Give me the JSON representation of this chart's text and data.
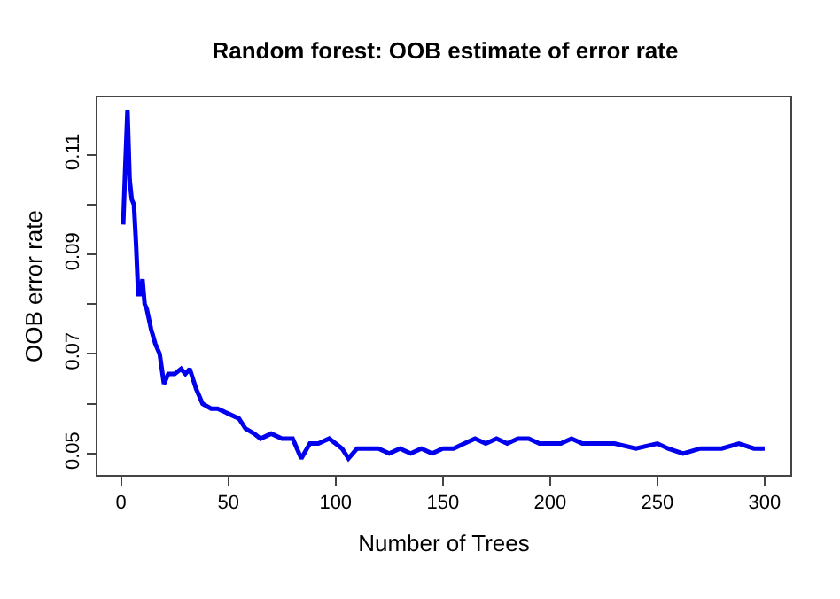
{
  "chart_data": {
    "type": "line",
    "title": "Random forest: OOB estimate of error rate",
    "xlabel": "Number of Trees",
    "ylabel": "OOB error rate",
    "x": [
      1,
      2,
      3,
      4,
      5,
      6,
      7,
      8,
      9,
      10,
      11,
      12,
      14,
      16,
      18,
      20,
      22,
      25,
      28,
      30,
      32,
      35,
      38,
      42,
      45,
      50,
      55,
      58,
      62,
      65,
      70,
      75,
      80,
      84,
      88,
      92,
      97,
      100,
      103,
      106,
      110,
      115,
      120,
      125,
      130,
      135,
      140,
      145,
      150,
      155,
      160,
      165,
      170,
      175,
      180,
      185,
      190,
      195,
      200,
      205,
      210,
      215,
      220,
      230,
      240,
      250,
      255,
      262,
      270,
      280,
      288,
      295,
      300
    ],
    "series": [
      {
        "color": "#0000ee",
        "values": [
          0.096,
          0.108,
          0.119,
          0.105,
          0.101,
          0.1,
          0.092,
          0.082,
          0.082,
          0.085,
          0.08,
          0.079,
          0.075,
          0.072,
          0.07,
          0.064,
          0.066,
          0.066,
          0.067,
          0.066,
          0.067,
          0.063,
          0.06,
          0.059,
          0.059,
          0.058,
          0.057,
          0.055,
          0.054,
          0.053,
          0.054,
          0.053,
          0.053,
          0.049,
          0.052,
          0.052,
          0.053,
          0.052,
          0.051,
          0.049,
          0.051,
          0.051,
          0.051,
          0.05,
          0.051,
          0.05,
          0.051,
          0.05,
          0.051,
          0.051,
          0.052,
          0.053,
          0.052,
          0.053,
          0.052,
          0.053,
          0.053,
          0.052,
          0.052,
          0.052,
          0.053,
          0.052,
          0.052,
          0.052,
          0.051,
          0.052,
          0.051,
          0.05,
          0.051,
          0.051,
          0.052,
          0.051,
          0.051
        ]
      }
    ],
    "xlim": [
      -11,
      312
    ],
    "xticks": [
      0,
      50,
      100,
      150,
      200,
      250,
      300
    ],
    "ylim": [
      0.0457,
      0.1215
    ],
    "yticks": [
      0.05,
      {
        "value": 0.06,
        "label": null
      },
      0.07,
      {
        "value": 0.08,
        "label": null
      },
      0.09,
      {
        "value": 0.1,
        "label": null
      },
      0.11
    ],
    "grid": false,
    "marker": "none",
    "line_style": "solid"
  }
}
